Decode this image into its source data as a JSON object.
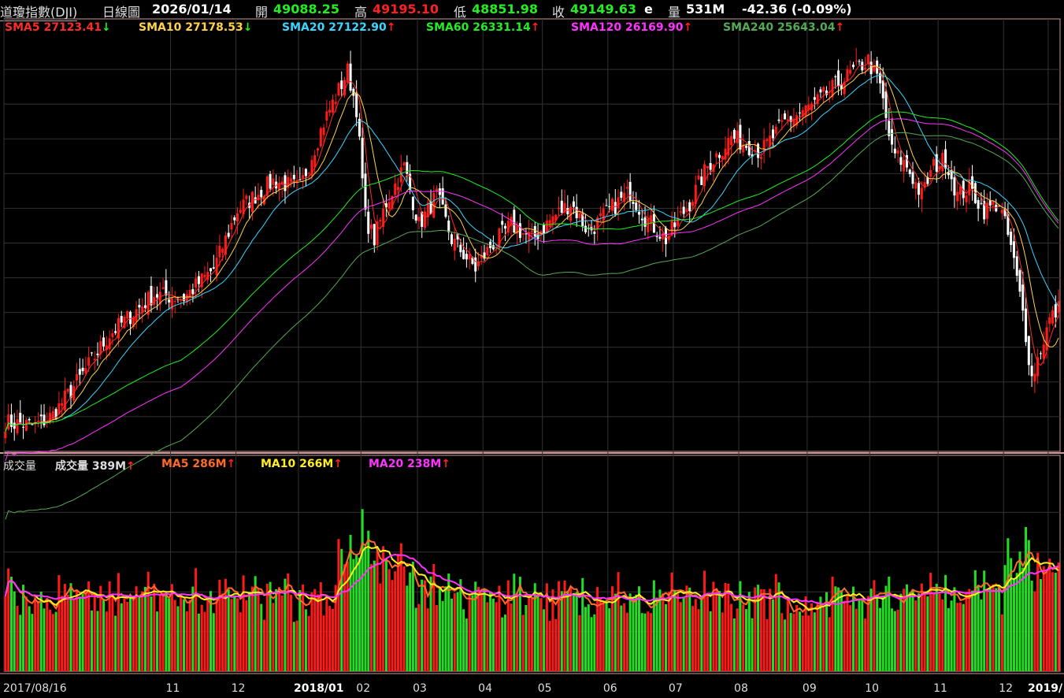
{
  "header": {
    "name": "道瓊指數(DJI)",
    "period": "日線圖",
    "date": "2026/01/14",
    "open_label": "開",
    "open": "49088.25",
    "high_label": "高",
    "high": "49195.10",
    "low_label": "低",
    "low": "48851.98",
    "close_label": "收",
    "close": "49149.63",
    "close_flag": "e",
    "vol_label": "量",
    "vol": "531M",
    "change": "-42.36 (-0.09%)"
  },
  "ma_legend": [
    {
      "label": "SMA5 27123.41",
      "arrow": "↓",
      "color": "#ff2a2a",
      "arrow_color": "#22ee22"
    },
    {
      "label": "SMA10 27178.53",
      "arrow": "↓",
      "color": "#ffd24a",
      "arrow_color": "#22ee22"
    },
    {
      "label": "SMA20 27122.90",
      "arrow": "↑",
      "color": "#3ad6ff",
      "arrow_color": "#ff2020"
    },
    {
      "label": "SMA60 26331.14",
      "arrow": "↑",
      "color": "#22ee22",
      "arrow_color": "#ff2020"
    },
    {
      "label": "SMA120 26169.90",
      "arrow": "↑",
      "color": "#ff33ff",
      "arrow_color": "#ff2020"
    },
    {
      "label": "SMA240 25643.04",
      "arrow": "↑",
      "color": "#55aa55",
      "arrow_color": "#ff2020"
    }
  ],
  "volume_legend": {
    "title": "成交量",
    "items": [
      {
        "label": "成交量 389M",
        "arrow": "↑",
        "color": "#ffffff"
      },
      {
        "label": "MA5 286M",
        "arrow": "↑",
        "color": "#ff6a2a"
      },
      {
        "label": "MA10 266M",
        "arrow": "↑",
        "color": "#ffee22"
      },
      {
        "label": "MA20 238M",
        "arrow": "↑",
        "color": "#ff33ff"
      }
    ]
  },
  "colors": {
    "up": "#ff1a1a",
    "down": "#ffffff",
    "vol_up": "#ff1a1a",
    "vol_down": "#22dd22",
    "grid": "#333333",
    "frame": "#cc9999"
  },
  "chart_data": {
    "type": "candlestick",
    "x_ticks": [
      "2017/08/16",
      "11",
      "12",
      "2018/01",
      "02",
      "03",
      "04",
      "05",
      "06",
      "07",
      "08",
      "09",
      "10",
      "11",
      "12",
      "2019/"
    ],
    "x_tick_positions": [
      0,
      56,
      78,
      99,
      120,
      139,
      161,
      181,
      203,
      225,
      247,
      270,
      291,
      314,
      336,
      351
    ],
    "total_bars": 355,
    "close_anchors": [
      [
        0,
        21800
      ],
      [
        10,
        21750
      ],
      [
        16,
        21900
      ],
      [
        25,
        22400
      ],
      [
        35,
        23000
      ],
      [
        50,
        23550
      ],
      [
        60,
        23500
      ],
      [
        70,
        23900
      ],
      [
        78,
        24700
      ],
      [
        90,
        25100
      ],
      [
        99,
        25000
      ],
      [
        107,
        25900
      ],
      [
        115,
        26600
      ],
      [
        118,
        26100
      ],
      [
        121,
        24600
      ],
      [
        124,
        24300
      ],
      [
        128,
        24800
      ],
      [
        134,
        25300
      ],
      [
        139,
        24500
      ],
      [
        145,
        24900
      ],
      [
        150,
        24300
      ],
      [
        158,
        23900
      ],
      [
        163,
        24200
      ],
      [
        170,
        24500
      ],
      [
        177,
        24300
      ],
      [
        184,
        24600
      ],
      [
        190,
        24800
      ],
      [
        196,
        24400
      ],
      [
        203,
        24700
      ],
      [
        210,
        24950
      ],
      [
        215,
        24600
      ],
      [
        222,
        24300
      ],
      [
        230,
        24800
      ],
      [
        236,
        25300
      ],
      [
        244,
        25700
      ],
      [
        254,
        25500
      ],
      [
        262,
        25900
      ],
      [
        272,
        26150
      ],
      [
        282,
        26500
      ],
      [
        290,
        26750
      ],
      [
        294,
        26400
      ],
      [
        298,
        25500
      ],
      [
        303,
        25300
      ],
      [
        308,
        24900
      ],
      [
        312,
        25300
      ],
      [
        316,
        25400
      ],
      [
        320,
        24900
      ],
      [
        324,
        25000
      ],
      [
        329,
        24700
      ],
      [
        334,
        24800
      ],
      [
        338,
        24200
      ],
      [
        342,
        23300
      ],
      [
        345,
        22400
      ],
      [
        348,
        22800
      ],
      [
        351,
        23200
      ],
      [
        355,
        23400
      ]
    ],
    "price_range": [
      21400,
      27100
    ],
    "volume_range_m": [
      0,
      700
    ],
    "sma_periods": [
      5,
      10,
      20,
      60,
      120,
      240
    ],
    "volume_ma_periods": [
      5,
      10,
      20
    ]
  }
}
